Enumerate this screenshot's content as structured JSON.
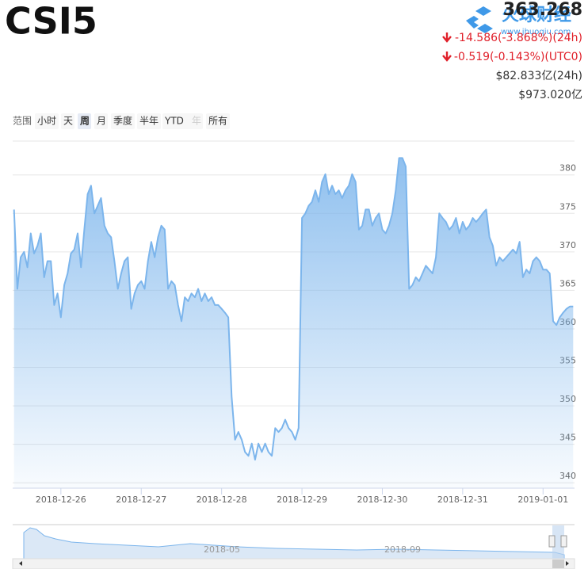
{
  "header": {
    "symbol": "CSI5",
    "price": "363.268",
    "change_24h": "-14.586(-3.868%)(24h)",
    "change_utc0": "-0.519(-0.143%)(UTC0)",
    "volume_24h": "$82.833亿(24h)",
    "market_cap": "$973.020亿"
  },
  "watermark": {
    "name": "火球财经",
    "url": "www.jhuoqiu.com"
  },
  "range_selector": {
    "label": "范围",
    "buttons": [
      "小时",
      "天",
      "周",
      "月",
      "季度",
      "半年",
      "YTD",
      "年",
      "所有"
    ],
    "selected": 2,
    "disabled": [
      7
    ]
  },
  "navigator": {
    "labels": [
      "2018-05",
      "2018-09"
    ]
  },
  "chart_data": {
    "type": "area",
    "color": "#7cb5ec",
    "grid": true,
    "x": [
      -14,
      -13,
      -12,
      -11,
      -10,
      -9,
      -8,
      -7,
      -6,
      -5,
      -4,
      -3,
      -2,
      -1,
      0,
      1,
      2,
      3,
      4,
      5,
      6,
      7,
      8,
      9,
      10,
      11,
      12,
      13,
      14,
      15,
      16,
      17,
      18,
      19,
      20,
      21,
      22,
      23,
      24,
      25,
      26,
      27,
      28,
      29,
      30,
      31,
      32,
      33,
      34,
      35,
      36,
      37,
      38,
      39,
      40,
      41,
      42,
      43,
      44,
      45,
      46,
      47,
      48,
      49,
      50,
      51,
      52,
      53,
      54,
      55,
      56,
      57,
      58,
      59,
      60,
      61,
      62,
      63,
      64,
      65,
      66,
      67,
      68,
      69,
      70,
      71,
      72,
      73,
      74,
      75,
      76,
      77,
      78,
      79,
      80,
      81,
      82,
      83,
      84,
      85,
      86,
      87,
      88,
      89,
      90,
      91,
      92,
      93,
      94,
      95,
      96,
      97,
      98,
      99,
      100,
      101,
      102,
      103,
      104,
      105,
      106,
      107,
      108,
      109,
      110,
      111,
      112,
      113,
      114,
      115,
      116,
      117,
      118,
      119,
      120,
      121,
      122,
      123,
      124,
      125,
      126,
      127,
      128,
      129,
      130,
      131,
      132,
      133,
      134,
      135,
      136,
      137,
      138,
      139,
      140,
      141,
      142,
      143,
      144,
      145,
      146,
      147,
      148,
      149,
      150,
      151,
      152,
      153
    ],
    "values": [
      375.5,
      365.2,
      369.3,
      370,
      368,
      372.4,
      369.8,
      370.8,
      372.4,
      366.7,
      368.8,
      368.8,
      363.1,
      364.6,
      361.5,
      365.7,
      367.2,
      369.8,
      370.3,
      372.4,
      368,
      372.9,
      377.5,
      378.6,
      375,
      376,
      377,
      373.4,
      372.4,
      371.9,
      368.8,
      365.2,
      367.2,
      368.8,
      369.3,
      362.6,
      364.6,
      365.7,
      366.2,
      365.2,
      368.8,
      371.3,
      369.3,
      371.9,
      373.4,
      372.9,
      365.2,
      366.2,
      365.7,
      363.1,
      361,
      364.1,
      363.6,
      364.6,
      364.1,
      365.2,
      363.6,
      364.6,
      363.6,
      364.1,
      363.1,
      363.1,
      362.6,
      362.1,
      361.5,
      351.2,
      345.6,
      346.6,
      345.6,
      344,
      343.5,
      345.1,
      343,
      345.1,
      344,
      345.1,
      344,
      343.5,
      347.1,
      346.6,
      347.1,
      348.2,
      347.1,
      346.6,
      345.6,
      347.1,
      374.4,
      375,
      376,
      376.5,
      378,
      376.5,
      379.1,
      380.1,
      377.5,
      378.6,
      377.5,
      378,
      377,
      378,
      378.6,
      380.1,
      379.1,
      372.9,
      373.4,
      375.5,
      375.5,
      373.4,
      374.4,
      375,
      372.9,
      372.4,
      373.4,
      375,
      378,
      382.2,
      382.2,
      381.1,
      365.2,
      365.7,
      366.7,
      366.2,
      367.2,
      368.2,
      367.7,
      367.2,
      369.3,
      375,
      374.4,
      373.9,
      372.9,
      373.4,
      374.4,
      372.4,
      373.9,
      372.9,
      373.4,
      374.4,
      373.9,
      374.4,
      375,
      375.5,
      371.9,
      370.8,
      368.2,
      369.3,
      368.8,
      369.3,
      369.8,
      370.3,
      369.8,
      371.3,
      366.7,
      367.7,
      367.2,
      368.8,
      369.3,
      368.8,
      367.7,
      367.7,
      367.2,
      361,
      360.5,
      361.5,
      362.1,
      362.6,
      362.9,
      362.9
    ],
    "xlim": [
      -14.4,
      153.4
    ],
    "ylim": [
      339.3,
      384.4
    ],
    "yticks": [
      340,
      345,
      350,
      355,
      360,
      365,
      370,
      375,
      380
    ],
    "xticks": [
      {
        "value": 0,
        "label": "2018-12-26"
      },
      {
        "value": 24,
        "label": "2018-12-27"
      },
      {
        "value": 48,
        "label": "2018-12-28"
      },
      {
        "value": 72,
        "label": "2018-12-29"
      },
      {
        "value": 96,
        "label": "2018-12-30"
      },
      {
        "value": 120,
        "label": "2018-12-31"
      },
      {
        "value": 144,
        "label": "2019-01-01"
      }
    ]
  }
}
